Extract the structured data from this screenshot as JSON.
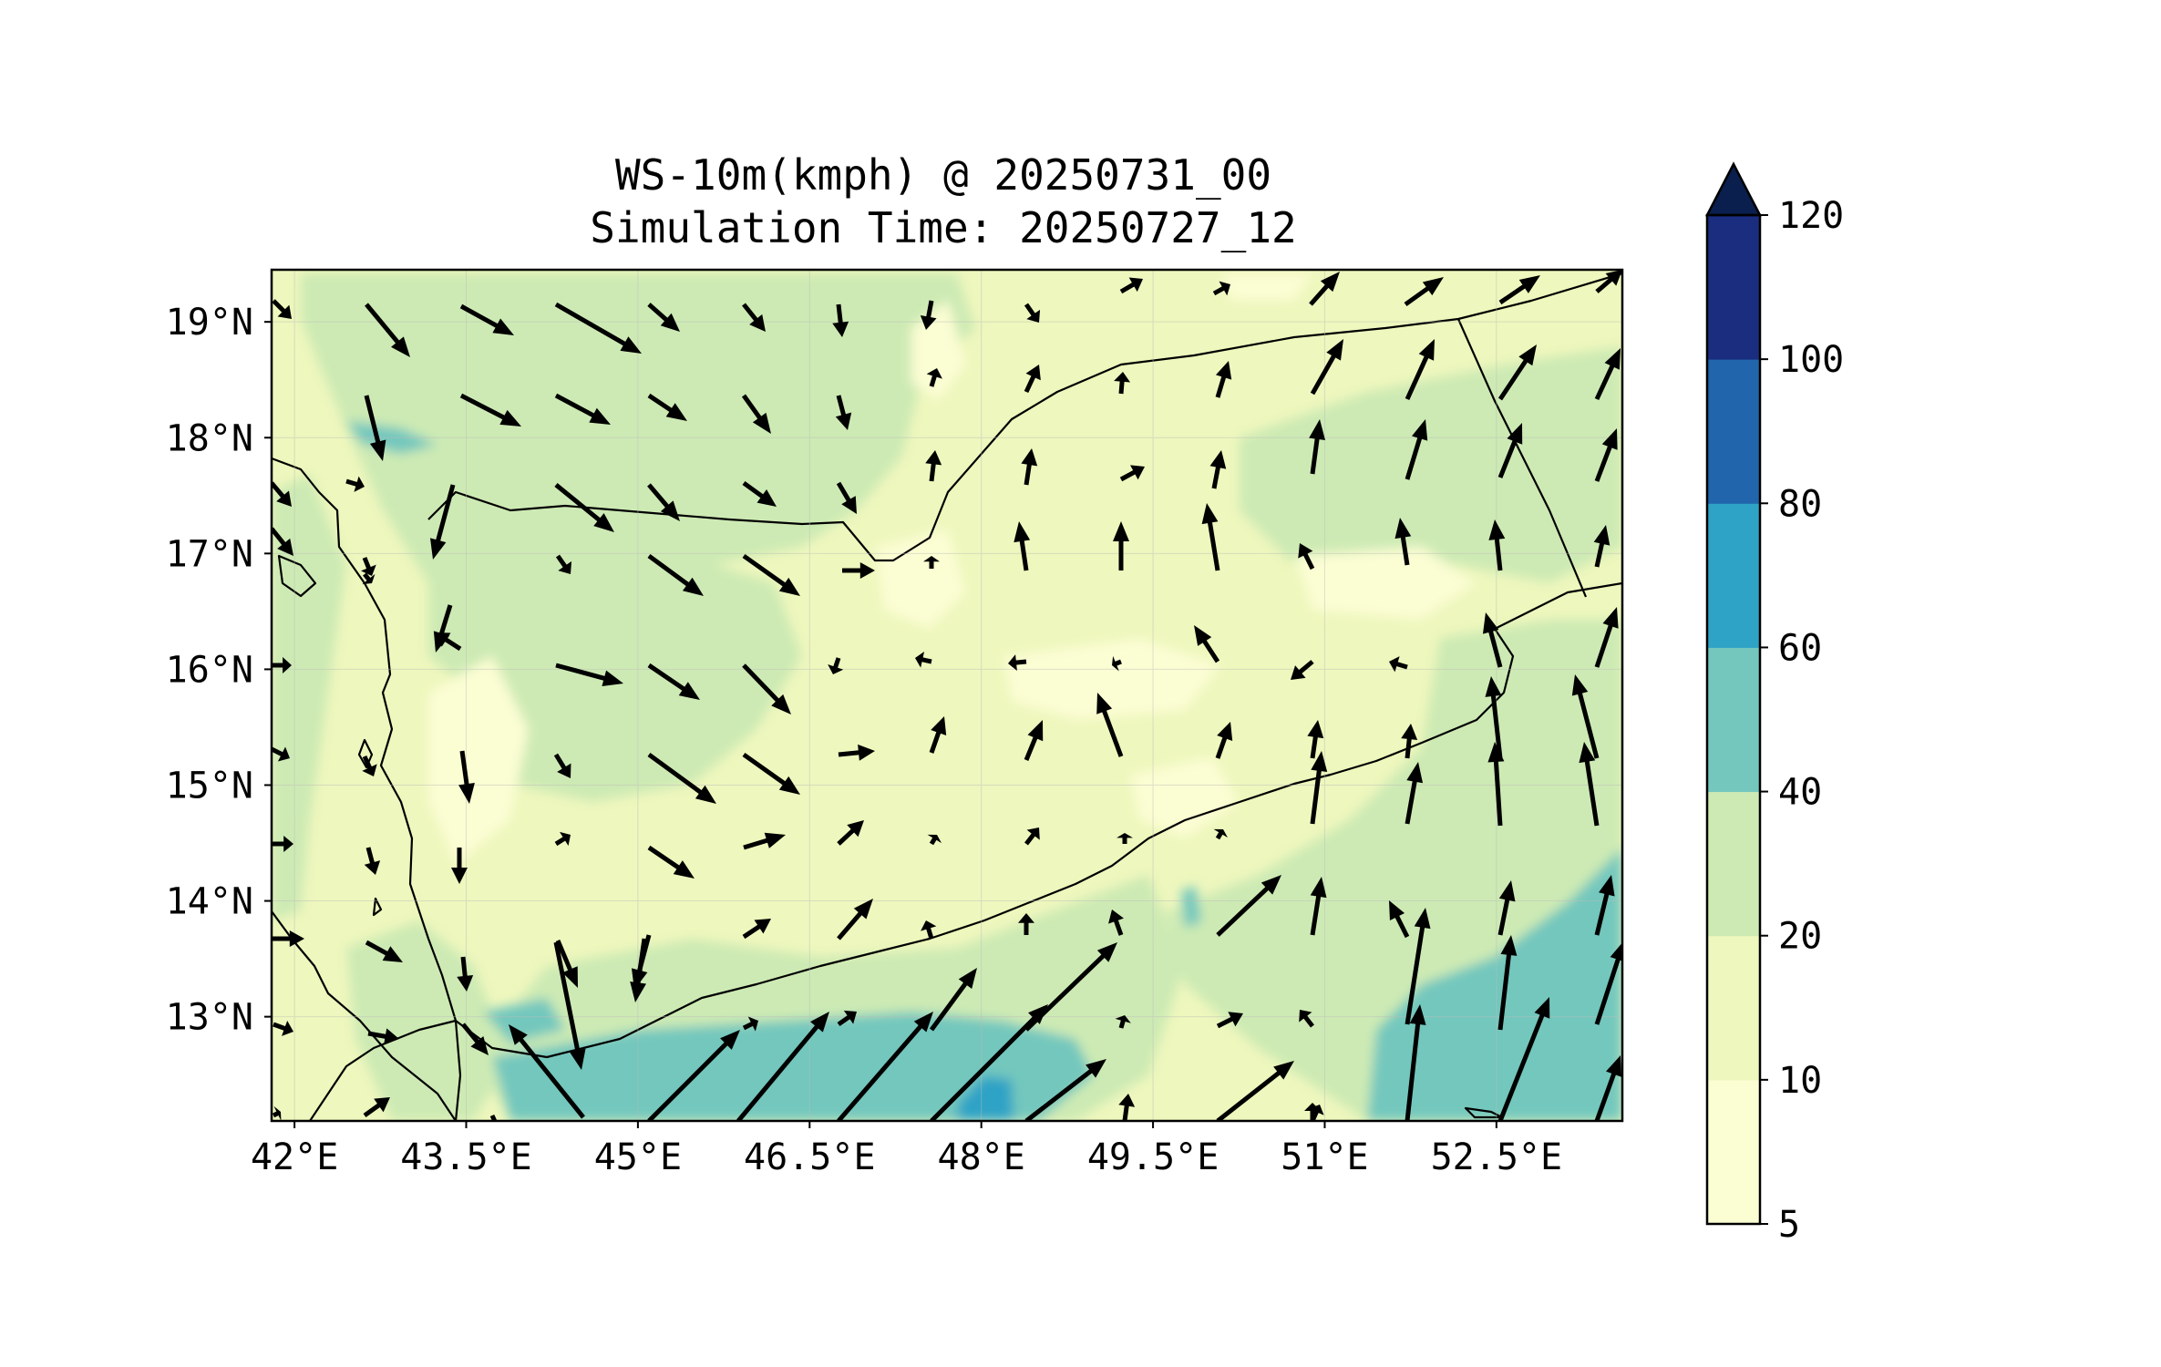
{
  "title_line_1": "WS-10m(kmph) @ 20250731_00",
  "title_line_2": "Simulation Time: 20250727_12",
  "map": {
    "lon_range": [
      41.8,
      53.6
    ],
    "lat_range": [
      12.1,
      19.45
    ],
    "lon_ticks": [
      {
        "value": 42.0,
        "label": "42°E"
      },
      {
        "value": 43.5,
        "label": "43.5°E"
      },
      {
        "value": 45.0,
        "label": "45°E"
      },
      {
        "value": 46.5,
        "label": "46.5°E"
      },
      {
        "value": 48.0,
        "label": "48°E"
      },
      {
        "value": 49.5,
        "label": "49.5°E"
      },
      {
        "value": 51.0,
        "label": "51°E"
      },
      {
        "value": 52.5,
        "label": "52.5°E"
      }
    ],
    "lat_ticks": [
      {
        "value": 19,
        "label": "19°N"
      },
      {
        "value": 18,
        "label": "18°N"
      },
      {
        "value": 17,
        "label": "17°N"
      },
      {
        "value": 16,
        "label": "16°N"
      },
      {
        "value": 15,
        "label": "15°N"
      },
      {
        "value": 14,
        "label": "14°N"
      },
      {
        "value": 13,
        "label": "13°N"
      }
    ],
    "gridlines": true
  },
  "colorbar": {
    "levels": [
      5,
      10,
      20,
      40,
      60,
      80,
      100,
      120
    ],
    "labels": [
      "5",
      "10",
      "20",
      "40",
      "60",
      "80",
      "100",
      "120"
    ],
    "colors": [
      "#fbfdd3",
      "#eef7bd",
      "#cdeab4",
      "#73c7bd",
      "#2fa3c6",
      "#2166ac",
      "#1a2d7f"
    ],
    "extend_color": "#0a1f4e",
    "extend": "max"
  },
  "colors": {
    "ws_5_10": "#fbfdd3",
    "ws_10_20": "#eef7bd",
    "ws_20_40": "#cdeab4",
    "ws_40_60": "#73c7bd",
    "ws_60_80": "#2fa3c6",
    "borders": "#000000",
    "arrows": "#000000"
  }
}
